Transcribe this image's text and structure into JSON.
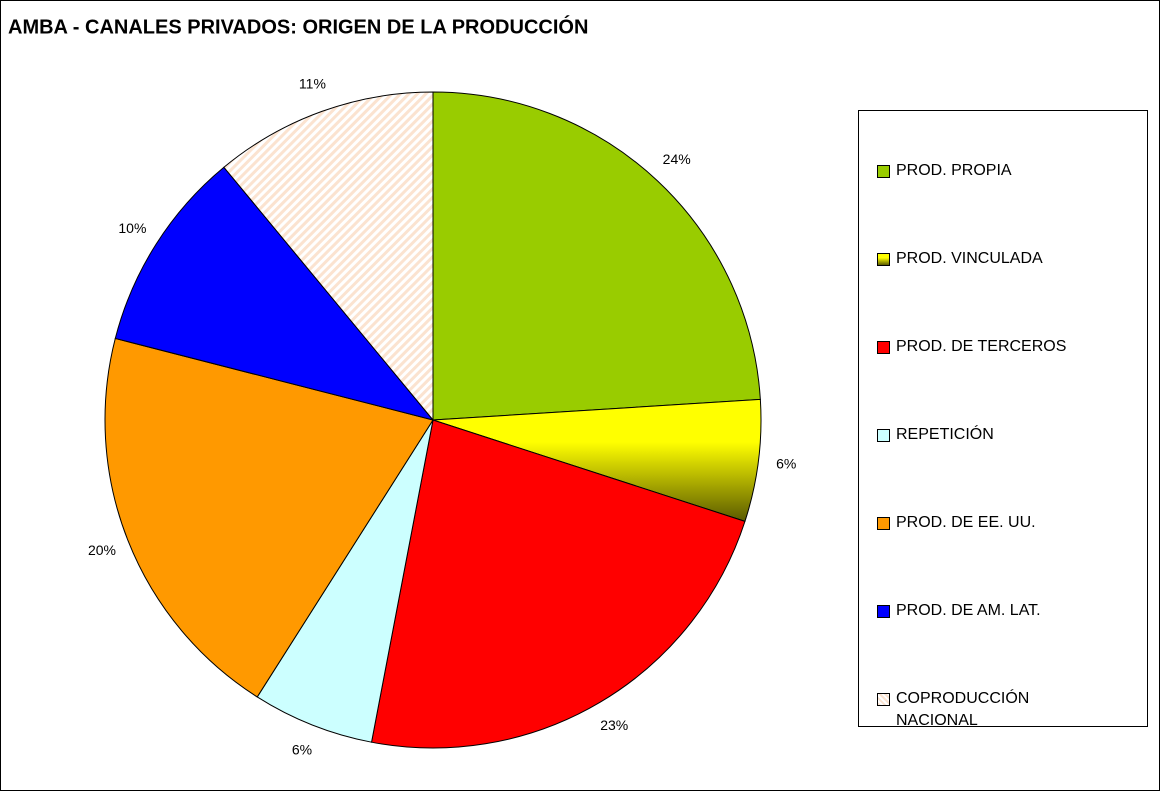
{
  "chart_data": {
    "type": "pie",
    "title": "AMBA - CANALES PRIVADOS: ORIGEN DE LA PRODUCCIÓN",
    "categories": [
      "PROD. PROPIA",
      "PROD. VINCULADA",
      "PROD. DE TERCEROS",
      "REPETICIÓN",
      "PROD. DE EE. UU.",
      "PROD. DE AM. LAT.",
      "COPRODUCCIÓN NACIONAL"
    ],
    "values": [
      24,
      6,
      23,
      6,
      20,
      10,
      11
    ],
    "value_labels": [
      "24%",
      "6%",
      "23%",
      "6%",
      "20%",
      "10%",
      "11%"
    ],
    "colors": [
      "#99cc00",
      "#ffff00",
      "#ff0000",
      "#ccffff",
      "#ff9900",
      "#0000ff",
      "#fbe3d0"
    ],
    "legend": "right"
  }
}
